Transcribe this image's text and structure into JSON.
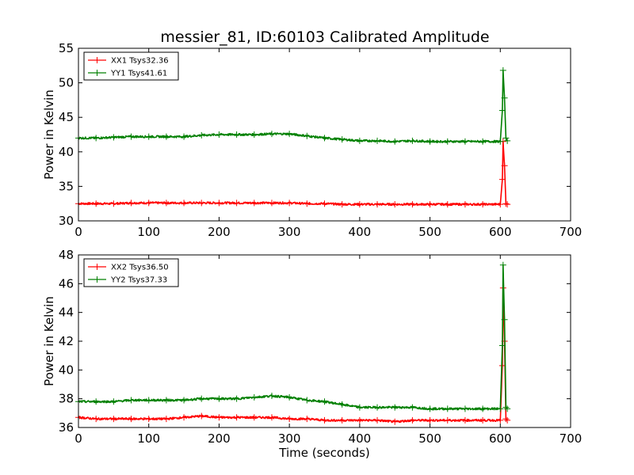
{
  "chart_data": [
    {
      "type": "line",
      "title": "messier_81, ID:60103 Calibrated Amplitude",
      "xlabel": "",
      "ylabel": "Power in Kelvin",
      "xlim": [
        0,
        700
      ],
      "ylim": [
        30,
        55
      ],
      "xticks": [
        "0",
        "100",
        "200",
        "300",
        "400",
        "500",
        "600",
        "700"
      ],
      "yticks": [
        "30",
        "35",
        "40",
        "45",
        "50",
        "55"
      ],
      "legend_position": "top-left",
      "series": [
        {
          "name": "XX1 Tsys32.36",
          "color": "#ff0000",
          "x": [
            0,
            25,
            50,
            75,
            100,
            125,
            150,
            175,
            200,
            225,
            250,
            275,
            300,
            325,
            350,
            375,
            400,
            425,
            450,
            475,
            500,
            525,
            550,
            575,
            600,
            603,
            604,
            606,
            608,
            610
          ],
          "y": [
            32.5,
            32.5,
            32.5,
            32.6,
            32.6,
            32.6,
            32.6,
            32.6,
            32.6,
            32.6,
            32.6,
            32.6,
            32.6,
            32.5,
            32.5,
            32.4,
            32.4,
            32.4,
            32.4,
            32.4,
            32.4,
            32.4,
            32.4,
            32.4,
            32.4,
            36.0,
            41.5,
            38.0,
            32.5,
            32.4
          ]
        },
        {
          "name": "YY1 Tsys41.61",
          "color": "#008000",
          "x": [
            0,
            25,
            50,
            75,
            100,
            125,
            150,
            175,
            200,
            225,
            250,
            275,
            300,
            325,
            350,
            375,
            400,
            425,
            450,
            475,
            500,
            525,
            550,
            575,
            600,
            603,
            604,
            606,
            608,
            610
          ],
          "y": [
            42.0,
            42.0,
            42.1,
            42.2,
            42.2,
            42.2,
            42.2,
            42.4,
            42.5,
            42.5,
            42.5,
            42.6,
            42.6,
            42.3,
            42.0,
            41.8,
            41.6,
            41.6,
            41.5,
            41.6,
            41.5,
            41.5,
            41.5,
            41.5,
            41.5,
            46.0,
            51.8,
            47.8,
            42.0,
            41.6
          ]
        }
      ]
    },
    {
      "type": "line",
      "title": "",
      "xlabel": "Time (seconds)",
      "ylabel": "Power in Kelvin",
      "xlim": [
        0,
        700
      ],
      "ylim": [
        36,
        48
      ],
      "xticks": [
        "0",
        "100",
        "200",
        "300",
        "400",
        "500",
        "600",
        "700"
      ],
      "yticks": [
        "36",
        "38",
        "40",
        "42",
        "44",
        "46",
        "48"
      ],
      "legend_position": "top-left",
      "series": [
        {
          "name": "XX2 Tsys36.50",
          "color": "#ff0000",
          "x": [
            0,
            25,
            50,
            75,
            100,
            125,
            150,
            175,
            200,
            225,
            250,
            275,
            300,
            325,
            350,
            375,
            400,
            425,
            450,
            475,
            500,
            525,
            550,
            575,
            600,
            603,
            604,
            606,
            608,
            610
          ],
          "y": [
            36.7,
            36.6,
            36.6,
            36.6,
            36.6,
            36.6,
            36.7,
            36.8,
            36.7,
            36.7,
            36.7,
            36.7,
            36.6,
            36.6,
            36.5,
            36.5,
            36.5,
            36.5,
            36.4,
            36.5,
            36.5,
            36.5,
            36.5,
            36.5,
            36.5,
            40.3,
            45.7,
            42.0,
            36.6,
            36.5
          ]
        },
        {
          "name": "YY2 Tsys37.33",
          "color": "#008000",
          "x": [
            0,
            25,
            50,
            75,
            100,
            125,
            150,
            175,
            200,
            225,
            250,
            275,
            300,
            325,
            350,
            375,
            400,
            425,
            450,
            475,
            500,
            525,
            550,
            575,
            600,
            603,
            604,
            606,
            608,
            610
          ],
          "y": [
            37.8,
            37.8,
            37.8,
            37.9,
            37.9,
            37.9,
            37.9,
            38.0,
            38.0,
            38.0,
            38.1,
            38.2,
            38.1,
            37.9,
            37.8,
            37.6,
            37.4,
            37.4,
            37.4,
            37.4,
            37.3,
            37.3,
            37.3,
            37.3,
            37.3,
            41.7,
            47.3,
            43.5,
            37.4,
            37.3
          ]
        }
      ]
    }
  ]
}
